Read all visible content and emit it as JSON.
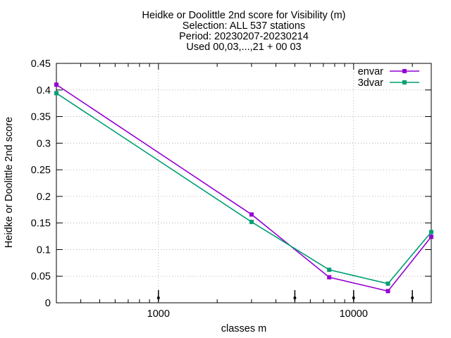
{
  "chart_data": {
    "type": "line",
    "title_lines": [
      "Heidke or Doolittle 2nd score  for Visibility (m)",
      "Selection: ALL    537 stations",
      "Period: 20230207-20230214",
      "Used 00,03,...,21 + 00 03"
    ],
    "xlabel": "classes m",
    "ylabel": "Heidke or Doolittle 2nd score",
    "xscale": "log",
    "xlim": [
      300,
      25000
    ],
    "ylim": [
      0,
      0.45
    ],
    "xticks": [
      {
        "value": 1000,
        "label": "1000"
      },
      {
        "value": 10000,
        "label": "10000"
      }
    ],
    "yticks": [
      {
        "value": 0,
        "label": "0"
      },
      {
        "value": 0.05,
        "label": "0.05"
      },
      {
        "value": 0.1,
        "label": "0.1"
      },
      {
        "value": 0.15,
        "label": "0.15"
      },
      {
        "value": 0.2,
        "label": "0.2"
      },
      {
        "value": 0.25,
        "label": "0.25"
      },
      {
        "value": 0.3,
        "label": "0.3"
      },
      {
        "value": 0.35,
        "label": "0.35"
      },
      {
        "value": 0.4,
        "label": "0.4"
      },
      {
        "value": 0.45,
        "label": "0.45"
      }
    ],
    "grid": true,
    "legend_position": "top-right",
    "series": [
      {
        "name": "envar",
        "color": "#9400d3",
        "x": [
          300,
          3000,
          7500,
          15000,
          25000
        ],
        "y": [
          0.41,
          0.166,
          0.048,
          0.022,
          0.124
        ]
      },
      {
        "name": "3dvar",
        "color": "#009e73",
        "x": [
          300,
          3000,
          7500,
          15000,
          25000
        ],
        "y": [
          0.394,
          0.152,
          0.062,
          0.036,
          0.133
        ]
      }
    ],
    "bottom_markers": [
      1000,
      5000,
      10000,
      20000
    ]
  }
}
